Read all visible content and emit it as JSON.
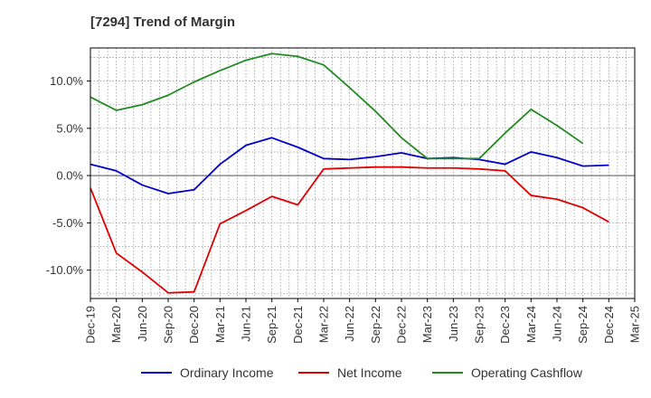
{
  "title": "[7294]  Trend of Margin",
  "chart_data": {
    "type": "line",
    "title": "[7294]  Trend of Margin",
    "xlabel": "",
    "ylabel": "",
    "x": [
      "Dec-19",
      "Mar-20",
      "Jun-20",
      "Sep-20",
      "Dec-20",
      "Mar-21",
      "Jun-21",
      "Sep-21",
      "Dec-21",
      "Mar-22",
      "Jun-22",
      "Sep-22",
      "Dec-22",
      "Mar-23",
      "Jun-23",
      "Sep-23",
      "Dec-23",
      "Mar-24",
      "Jun-24",
      "Sep-24",
      "Dec-24",
      "Mar-25"
    ],
    "yticks": [
      {
        "value": 10,
        "label": "10.0%"
      },
      {
        "value": 5,
        "label": "5.0%"
      },
      {
        "value": 0,
        "label": "0.0%"
      },
      {
        "value": -5,
        "label": "-5.0%"
      },
      {
        "value": -10,
        "label": "-10.0%"
      }
    ],
    "ylim": [
      -13,
      13.5
    ],
    "grid": true,
    "legend_position": "bottom",
    "series": [
      {
        "name": "Ordinary Income",
        "color": "#0000cc",
        "values": [
          1.2,
          0.5,
          -1.0,
          -1.9,
          -1.5,
          1.2,
          3.2,
          4.0,
          3.0,
          1.8,
          1.7,
          2.0,
          2.4,
          1.8,
          1.9,
          1.7,
          1.2,
          2.5,
          1.9,
          1.0,
          1.1,
          null
        ]
      },
      {
        "name": "Net Income",
        "color": "#e00000",
        "values": [
          -1.3,
          -8.2,
          -10.2,
          -12.4,
          -12.3,
          -5.1,
          -3.7,
          -2.2,
          -3.1,
          0.7,
          0.8,
          0.9,
          0.9,
          0.8,
          0.8,
          0.7,
          0.5,
          -2.1,
          -2.5,
          -3.4,
          -4.9,
          null
        ]
      },
      {
        "name": "Operating Cashflow",
        "color": "#228b22",
        "values": [
          8.3,
          6.9,
          7.5,
          8.5,
          9.9,
          11.1,
          12.2,
          12.9,
          12.6,
          11.7,
          9.3,
          6.8,
          4.0,
          1.8,
          1.8,
          1.8,
          4.5,
          7.0,
          5.3,
          3.4,
          null,
          null
        ]
      }
    ]
  }
}
